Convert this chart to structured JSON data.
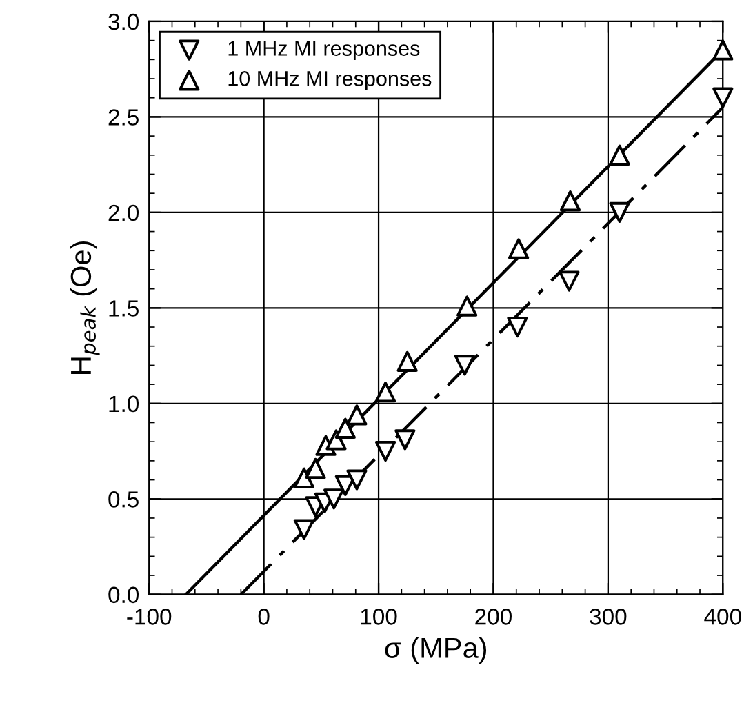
{
  "chart_data": {
    "type": "scatter",
    "xlabel": "σ (MPa)",
    "ylabel": "H$_{peak}$ (Oe)",
    "xlim": [
      -100,
      400
    ],
    "xticks": [
      -100,
      0,
      100,
      200,
      300,
      400
    ],
    "ylim": [
      0,
      3.0
    ],
    "yticks": [
      {
        "value": 0,
        "label": "0.0"
      },
      0.5,
      {
        "value": 1,
        "label": "1.0"
      },
      1.5,
      {
        "value": 2,
        "label": "2.0"
      },
      2.5,
      {
        "value": 3,
        "label": "3.0"
      }
    ],
    "grid": true,
    "legend": "top left",
    "series": [
      {
        "name": "1 MHz MI responses",
        "marker": "triangle_down",
        "color": "#000000",
        "x": [
          35,
          45,
          53,
          61,
          71,
          81,
          106,
          123,
          175,
          221,
          266,
          310,
          400
        ],
        "values": [
          0.34,
          0.46,
          0.48,
          0.5,
          0.57,
          0.6,
          0.75,
          0.81,
          1.2,
          1.4,
          1.64,
          2.0,
          2.6
        ]
      },
      {
        "name": "10 MHz MI responses",
        "marker": "triangle",
        "color": "#000000",
        "x": [
          35,
          45,
          54,
          63,
          71,
          81,
          106,
          125,
          177,
          222,
          267,
          310,
          400
        ],
        "values": [
          0.61,
          0.66,
          0.78,
          0.81,
          0.87,
          0.94,
          1.06,
          1.22,
          1.51,
          1.81,
          2.06,
          2.3,
          2.85
        ]
      },
      {
        "type": "line",
        "line_style": "dashed",
        "color": "#000000",
        "x": [
          -20,
          400
        ],
        "values": [
          0,
          2.55
        ]
      },
      {
        "type": "line",
        "line_style": "solid",
        "color": "#000000",
        "x": [
          -68,
          400
        ],
        "values": [
          0,
          2.85
        ]
      }
    ]
  }
}
